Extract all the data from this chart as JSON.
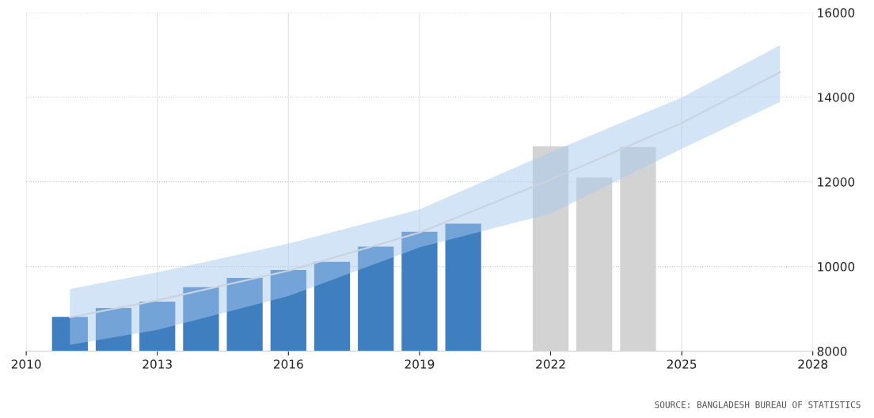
{
  "chart_data": {
    "type": "bar",
    "xlim": [
      2010,
      2028
    ],
    "xticks": [
      2010,
      2013,
      2016,
      2019,
      2022,
      2025,
      2028
    ],
    "ylim": [
      8000,
      16000
    ],
    "yticks": [
      8000,
      10000,
      12000,
      14000,
      16000
    ],
    "grid": true,
    "legend": false,
    "series": [
      {
        "color": "#3f7fbf",
        "x": [
          2011,
          2012,
          2013,
          2014,
          2015,
          2016,
          2017,
          2018,
          2019,
          2020
        ],
        "values": [
          8810,
          9020,
          9170,
          9510,
          9730,
          9920,
          10110,
          10470,
          10820,
          11010
        ]
      },
      {
        "color": "#d3d3d3",
        "x": [
          2022,
          2023,
          2024
        ],
        "values": [
          12840,
          12100,
          12820
        ]
      },
      {
        "type": "line",
        "color": "#c9d3e0",
        "x": [
          2011,
          2013,
          2016,
          2019,
          2022,
          2025,
          2027.25
        ],
        "values": [
          8800,
          9200,
          9900,
          10800,
          12050,
          13390,
          14590
        ],
        "lower": [
          8150,
          8500,
          9300,
          10450,
          11250,
          12780,
          13890
        ],
        "upper": [
          9470,
          9860,
          10540,
          11350,
          12700,
          13990,
          15230
        ]
      }
    ],
    "annotations": [
      "SOURCE: BANGLADESH BUREAU OF STATISTICS"
    ]
  }
}
